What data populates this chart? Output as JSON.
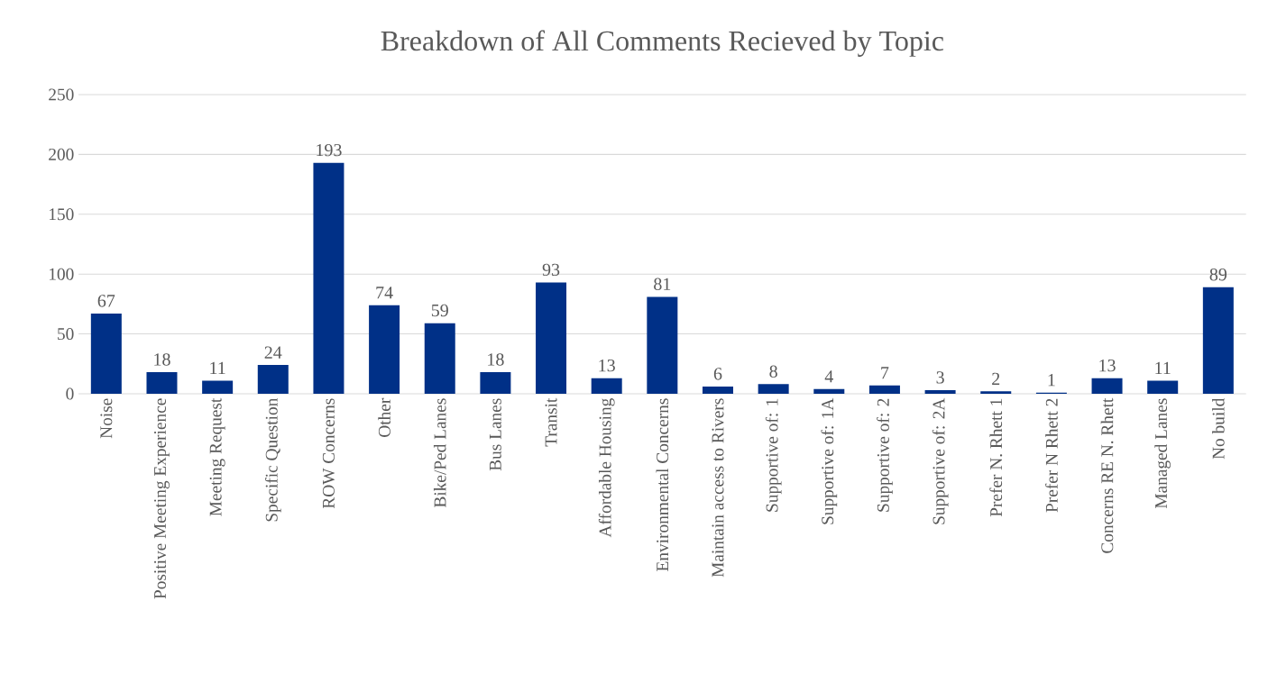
{
  "chart_data": {
    "type": "bar",
    "title": "Breakdown of All Comments Recieved by Topic",
    "categories": [
      "Noise",
      "Positive Meeting Experience",
      "Meeting Request",
      "Specific Question",
      "ROW Concerns",
      "Other",
      "Bike/Ped Lanes",
      "Bus Lanes",
      "Transit",
      "Affordable Housing",
      "Environmental Concerns",
      "Maintain access to Rivers",
      "Supportive of: 1",
      "Supportive of: 1A",
      "Supportive of: 2",
      "Supportive of: 2A",
      "Prefer N. Rhett 1",
      "Prefer N Rhett 2",
      "Concerns RE N. Rhett",
      "Managed Lanes",
      "No build"
    ],
    "values": [
      67,
      18,
      11,
      24,
      193,
      74,
      59,
      18,
      93,
      13,
      81,
      6,
      8,
      4,
      7,
      3,
      2,
      1,
      13,
      11,
      89
    ],
    "color": "#003087",
    "ylim": [
      0,
      250
    ],
    "yticks": [
      0,
      50,
      100,
      150,
      200,
      250
    ],
    "grid": "y",
    "data_labels": true
  }
}
